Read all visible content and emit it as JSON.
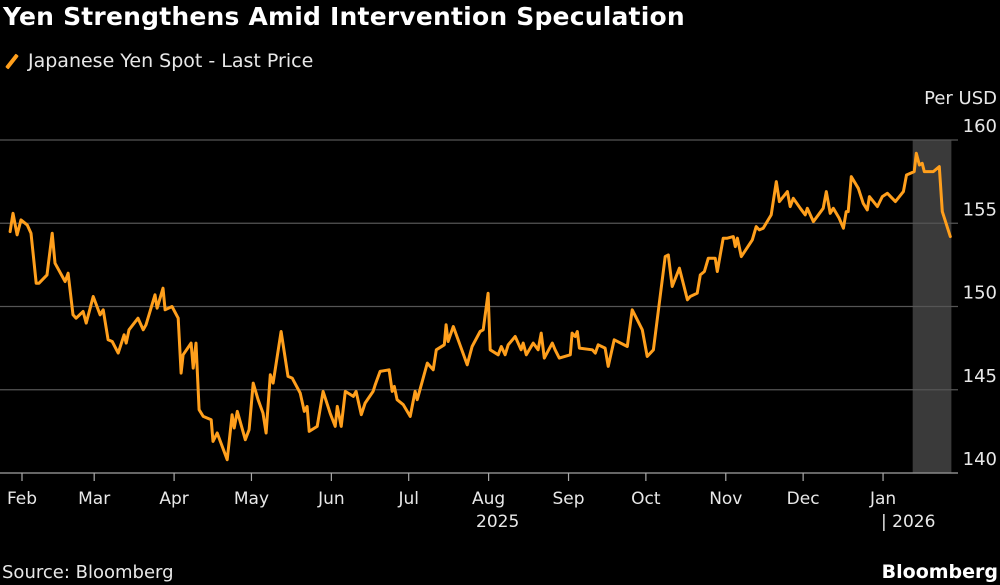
{
  "chart_data": {
    "type": "line",
    "title": "Yen Strengthens Amid Intervention Speculation",
    "legend": [
      "Japanese Yen Spot - Last Price"
    ],
    "legend_placement": "top-left",
    "ylabel": "Per USD",
    "ylim": [
      140,
      160
    ],
    "yticks": [
      140,
      145,
      150,
      155,
      160
    ],
    "x_units": "days since 2025-01-01",
    "xlim": [
      23,
      394
    ],
    "xticks": [
      {
        "day": 31,
        "label": "Feb"
      },
      {
        "day": 59,
        "label": "Mar"
      },
      {
        "day": 90,
        "label": "Apr"
      },
      {
        "day": 120,
        "label": "May"
      },
      {
        "day": 151,
        "label": "Jun"
      },
      {
        "day": 181,
        "label": "Jul"
      },
      {
        "day": 212,
        "label": "Aug"
      },
      {
        "day": 243,
        "label": "Sep"
      },
      {
        "day": 273,
        "label": "Oct"
      },
      {
        "day": 304,
        "label": "Nov"
      },
      {
        "day": 334,
        "label": "Dec"
      },
      {
        "day": 365,
        "label": "Jan"
      }
    ],
    "year_labels": [
      {
        "day": 200,
        "label": "2025"
      },
      {
        "day": 365,
        "label": "| 2026"
      }
    ],
    "grid": true,
    "highlight_range": [
      376.5,
      391.5
    ],
    "series": [
      {
        "name": "Japanese Yen Spot - Last Price",
        "color": "#ff9f1c",
        "points": [
          [
            26.4,
            154.5
          ],
          [
            27.5,
            155.6
          ],
          [
            29.1,
            154.3
          ],
          [
            30.6,
            155.2
          ],
          [
            33,
            154.9
          ],
          [
            34.5,
            154.4
          ],
          [
            36.5,
            151.4
          ],
          [
            37.6,
            151.4
          ],
          [
            40.7,
            151.9
          ],
          [
            42.7,
            154.4
          ],
          [
            43.8,
            152.6
          ],
          [
            47.7,
            151.5
          ],
          [
            48.9,
            152.0
          ],
          [
            50.8,
            149.5
          ],
          [
            52,
            149.3
          ],
          [
            54.7,
            149.7
          ],
          [
            55.9,
            149.0
          ],
          [
            58.6,
            150.6
          ],
          [
            61.3,
            149.5
          ],
          [
            62.5,
            149.8
          ],
          [
            64.4,
            148.0
          ],
          [
            66,
            147.9
          ],
          [
            68.3,
            147.2
          ],
          [
            70.6,
            148.3
          ],
          [
            71.4,
            147.8
          ],
          [
            72.5,
            148.6
          ],
          [
            76,
            149.3
          ],
          [
            78,
            148.6
          ],
          [
            79.1,
            148.9
          ],
          [
            82.6,
            150.7
          ],
          [
            83.4,
            149.9
          ],
          [
            85.7,
            151.1
          ],
          [
            86.5,
            149.8
          ],
          [
            89.2,
            150.0
          ],
          [
            91.6,
            149.3
          ],
          [
            92.7,
            146.0
          ],
          [
            93.5,
            147.1
          ],
          [
            96.6,
            147.8
          ],
          [
            97.4,
            146.3
          ],
          [
            98.5,
            147.8
          ],
          [
            99.7,
            143.8
          ],
          [
            101.3,
            143.4
          ],
          [
            104.4,
            143.2
          ],
          [
            105.1,
            141.9
          ],
          [
            106.7,
            142.4
          ],
          [
            110.6,
            140.8
          ],
          [
            112.5,
            143.5
          ],
          [
            113.3,
            142.7
          ],
          [
            114.5,
            143.7
          ],
          [
            117.6,
            142.0
          ],
          [
            119.1,
            142.6
          ],
          [
            120.7,
            145.4
          ],
          [
            122.6,
            144.4
          ],
          [
            124.5,
            143.6
          ],
          [
            125.7,
            142.4
          ],
          [
            127.3,
            145.9
          ],
          [
            128.4,
            145.4
          ],
          [
            131.5,
            148.5
          ],
          [
            134.2,
            145.8
          ],
          [
            135.8,
            145.7
          ],
          [
            138.9,
            144.8
          ],
          [
            140.5,
            143.7
          ],
          [
            141.6,
            144.0
          ],
          [
            142.4,
            142.5
          ],
          [
            145.5,
            142.8
          ],
          [
            147.8,
            144.9
          ],
          [
            150.5,
            143.6
          ],
          [
            152.5,
            142.8
          ],
          [
            153.3,
            144.0
          ],
          [
            154.8,
            142.8
          ],
          [
            156.4,
            144.9
          ],
          [
            159.5,
            144.6
          ],
          [
            160.6,
            144.9
          ],
          [
            162.6,
            143.5
          ],
          [
            164.1,
            144.2
          ],
          [
            167.2,
            144.9
          ],
          [
            168,
            145.3
          ],
          [
            169.9,
            146.1
          ],
          [
            173.4,
            146.2
          ],
          [
            174.6,
            144.9
          ],
          [
            175.4,
            145.2
          ],
          [
            176.5,
            144.4
          ],
          [
            178.9,
            144.1
          ],
          [
            181.6,
            143.4
          ],
          [
            183.5,
            144.9
          ],
          [
            184.3,
            144.4
          ],
          [
            188.2,
            146.6
          ],
          [
            190.5,
            146.2
          ],
          [
            191.7,
            147.4
          ],
          [
            194.8,
            147.7
          ],
          [
            195.5,
            148.9
          ],
          [
            196.3,
            147.9
          ],
          [
            198.3,
            148.8
          ],
          [
            203.7,
            146.5
          ],
          [
            205.6,
            147.6
          ],
          [
            208.7,
            148.5
          ],
          [
            209.9,
            148.6
          ],
          [
            211.8,
            150.8
          ],
          [
            212.6,
            147.4
          ],
          [
            215.7,
            147.1
          ],
          [
            216.9,
            147.6
          ],
          [
            218.4,
            147.1
          ],
          [
            219.6,
            147.7
          ],
          [
            222.3,
            148.2
          ],
          [
            224.6,
            147.4
          ],
          [
            225.4,
            147.8
          ],
          [
            226.6,
            147.1
          ],
          [
            229.3,
            147.8
          ],
          [
            231.2,
            147.4
          ],
          [
            232.4,
            148.4
          ],
          [
            233.6,
            146.9
          ],
          [
            236.7,
            147.8
          ],
          [
            237.8,
            147.4
          ],
          [
            239.4,
            146.9
          ],
          [
            243.7,
            147.1
          ],
          [
            244.4,
            148.4
          ],
          [
            245.6,
            148.2
          ],
          [
            246.4,
            148.5
          ],
          [
            247.2,
            147.5
          ],
          [
            252.2,
            147.4
          ],
          [
            253.4,
            147.2
          ],
          [
            254.5,
            147.7
          ],
          [
            257.2,
            147.5
          ],
          [
            258.4,
            146.4
          ],
          [
            260.7,
            148.0
          ],
          [
            265.8,
            147.6
          ],
          [
            267.7,
            149.8
          ],
          [
            271.6,
            148.6
          ],
          [
            273.5,
            147.0
          ],
          [
            275.9,
            147.4
          ],
          [
            280.5,
            153.0
          ],
          [
            281.7,
            153.1
          ],
          [
            283.2,
            151.2
          ],
          [
            286,
            152.3
          ],
          [
            289.1,
            150.4
          ],
          [
            290.2,
            150.6
          ],
          [
            292.9,
            150.8
          ],
          [
            294.1,
            151.9
          ],
          [
            295.7,
            152.1
          ],
          [
            297.2,
            152.9
          ],
          [
            299.9,
            152.9
          ],
          [
            300.7,
            152.1
          ],
          [
            303,
            154.1
          ],
          [
            304.6,
            154.1
          ],
          [
            306.9,
            154.2
          ],
          [
            307.7,
            153.6
          ],
          [
            308.5,
            154.1
          ],
          [
            310,
            153.0
          ],
          [
            314.3,
            154.0
          ],
          [
            315.8,
            154.8
          ],
          [
            317,
            154.6
          ],
          [
            318.5,
            154.7
          ],
          [
            321.6,
            155.5
          ],
          [
            323.6,
            157.5
          ],
          [
            324.8,
            156.3
          ],
          [
            327.9,
            156.9
          ],
          [
            329,
            156.0
          ],
          [
            330.2,
            156.5
          ],
          [
            332.9,
            155.9
          ],
          [
            334.8,
            155.5
          ],
          [
            335.6,
            155.9
          ],
          [
            338,
            155.1
          ],
          [
            341.8,
            155.9
          ],
          [
            343,
            156.9
          ],
          [
            344.5,
            155.6
          ],
          [
            345.7,
            155.9
          ],
          [
            348,
            155.3
          ],
          [
            349.6,
            154.7
          ],
          [
            350.7,
            155.7
          ],
          [
            351.5,
            155.7
          ],
          [
            352.7,
            157.8
          ],
          [
            355.4,
            157.1
          ],
          [
            357.3,
            156.2
          ],
          [
            358.9,
            155.8
          ],
          [
            359.7,
            156.6
          ],
          [
            362.8,
            156.0
          ],
          [
            364.7,
            156.6
          ],
          [
            366.7,
            156.8
          ],
          [
            369.8,
            156.3
          ],
          [
            372.9,
            156.9
          ],
          [
            374.1,
            157.9
          ],
          [
            377.1,
            158.1
          ],
          [
            377.9,
            159.2
          ],
          [
            379.1,
            158.5
          ],
          [
            380.2,
            158.6
          ],
          [
            381,
            158.1
          ],
          [
            384.5,
            158.1
          ],
          [
            386.8,
            158.4
          ],
          [
            388,
            155.7
          ],
          [
            391.1,
            154.2
          ]
        ]
      }
    ],
    "source": "Source: Bloomberg",
    "brand": "Bloomberg"
  }
}
